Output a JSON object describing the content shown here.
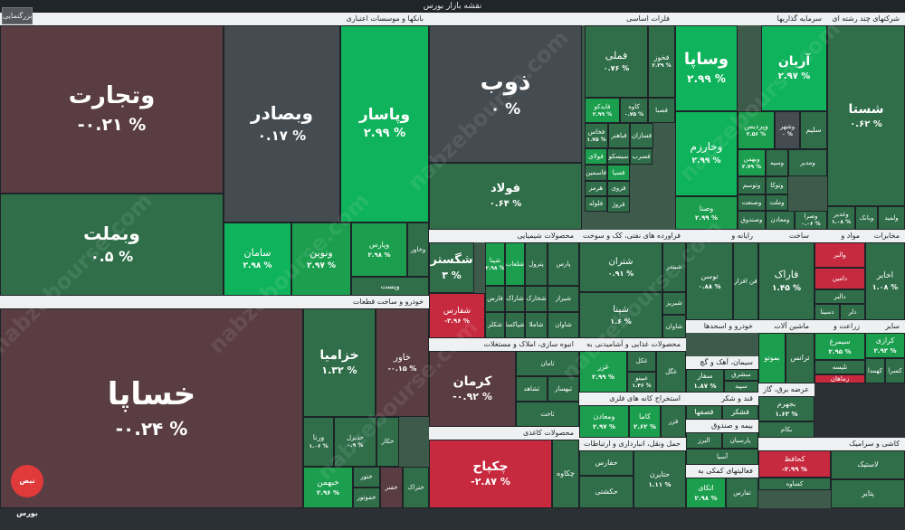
{
  "page": {
    "title": "نقشه بازار بورس",
    "zoom_button": "بزرگنمایی",
    "watermark": "nabzebourse.com",
    "logo_text": "نبض بورس"
  },
  "colors": {
    "strong_up": "#0fb35b",
    "mid_up": "#1b9e4d",
    "weak_up": "#2f6e49",
    "flat": "#444b51",
    "weak_down": "#5a3d43",
    "strong_down": "#c72a3f",
    "header_bg": "#eef0f2"
  },
  "chart_data": {
    "type": "treemap",
    "sectors": [
      {
        "name": "بانکها و موسسات اعتباری",
        "tiles": [
          {
            "symbol": "وتجارت",
            "change": "-۰.۲۱ %",
            "tone": "weak_down"
          },
          {
            "symbol": "وبملت",
            "change": "۰.۵ %",
            "tone": "weak_up"
          },
          {
            "symbol": "وبصادر",
            "change": "۰.۱۷ %",
            "tone": "flat"
          },
          {
            "symbol": "وپاسار",
            "change": "۲.۹۹ %",
            "tone": "strong_up"
          },
          {
            "symbol": "سامان",
            "change": "۲.۹۸ %",
            "tone": "strong_up"
          },
          {
            "symbol": "ونوین",
            "change": "۲.۹۷ %",
            "tone": "mid_up"
          },
          {
            "symbol": "وپارس",
            "change": "۲.۹۸ %",
            "tone": "mid_up"
          },
          {
            "symbol": "وخاور",
            "change": "",
            "tone": "weak_up"
          },
          {
            "symbol": "ویست",
            "change": "",
            "tone": "weak_up"
          }
        ]
      },
      {
        "name": "خودرو و ساخت قطعات",
        "tiles": [
          {
            "symbol": "خساپا",
            "change": "-۰.۲۴ %",
            "tone": "weak_down"
          },
          {
            "symbol": "خزامیا",
            "change": "۱.۳۲ %",
            "tone": "weak_up"
          },
          {
            "symbol": "خاور",
            "change": "-۰.۱۵ %",
            "tone": "weak_down"
          },
          {
            "symbol": "ورنا",
            "change": "۱.۰۶ %",
            "tone": "weak_up"
          },
          {
            "symbol": "خدیزل",
            "change": "۰.۹ %",
            "tone": "weak_up"
          },
          {
            "symbol": "خکار",
            "change": "",
            "tone": "weak_up"
          },
          {
            "symbol": "خبهمن",
            "change": "۲.۹۶ %",
            "tone": "mid_up"
          },
          {
            "symbol": "ختور",
            "change": "",
            "tone": "weak_up"
          },
          {
            "symbol": "خموتور",
            "change": "",
            "tone": "weak_up"
          },
          {
            "symbol": "خفنر",
            "change": "",
            "tone": "weak_down"
          },
          {
            "symbol": "ختراک",
            "change": "",
            "tone": "weak_up"
          }
        ]
      },
      {
        "name": "فلزات اساسی",
        "tiles": [
          {
            "symbol": "ذوب",
            "change": "۰ %",
            "tone": "flat"
          },
          {
            "symbol": "فولاد",
            "change": "۰.۶۴ %",
            "tone": "weak_up"
          },
          {
            "symbol": "فملی",
            "change": "۰.۷۶ %",
            "tone": "weak_up"
          },
          {
            "symbol": "فخوز",
            "change": "۲.۳۹ %",
            "tone": "weak_up"
          },
          {
            "symbol": "کاوه",
            "change": "۰.۷۵ %",
            "tone": "weak_up"
          },
          {
            "symbol": "فایدکو",
            "change": "۲.۹۹ %",
            "tone": "mid_up"
          },
          {
            "symbol": "فصبا",
            "change": "",
            "tone": "weak_up"
          },
          {
            "symbol": "فخاس",
            "change": "۱.۷۵ %",
            "tone": "weak_up"
          },
          {
            "symbol": "فباهنر",
            "change": "",
            "tone": "weak_up"
          },
          {
            "symbol": "فسازان",
            "change": "",
            "tone": "weak_up"
          },
          {
            "symbol": "فولای",
            "change": "",
            "tone": "mid_up"
          },
          {
            "symbol": "سیسکو",
            "change": "",
            "tone": "weak_up"
          },
          {
            "symbol": "فاسمین",
            "change": "",
            "tone": "weak_up"
          },
          {
            "symbol": "فسپا",
            "change": "",
            "tone": "mid_up"
          },
          {
            "symbol": "هرمز",
            "change": "",
            "tone": "weak_up"
          },
          {
            "symbol": "فروی",
            "change": "",
            "tone": "weak_up"
          },
          {
            "symbol": "فسرب",
            "change": "",
            "tone": "weak_up"
          },
          {
            "symbol": "فلوله",
            "change": "",
            "tone": "weak_up"
          },
          {
            "symbol": "فروژ",
            "change": "",
            "tone": "weak_up"
          }
        ]
      },
      {
        "name": "سرمایه گذاریها",
        "tiles": [
          {
            "symbol": "وساپا",
            "change": "۲.۹۹ %",
            "tone": "strong_up"
          },
          {
            "symbol": "آریان",
            "change": "۲.۹۷ %",
            "tone": "strong_up"
          },
          {
            "symbol": "وخارزم",
            "change": "۲.۹۹ %",
            "tone": "strong_up"
          },
          {
            "symbol": "وپردیس",
            "change": "۲.۵۶ %",
            "tone": "mid_up"
          },
          {
            "symbol": "وشهر",
            "change": "۰ %",
            "tone": "flat"
          },
          {
            "symbol": "وصنا",
            "change": "۲.۹۹ %",
            "tone": "mid_up"
          },
          {
            "symbol": "وبهمن",
            "change": "۲.۷۹ %",
            "tone": "mid_up"
          },
          {
            "symbol": "وتوسم",
            "change": "",
            "tone": "weak_up"
          },
          {
            "symbol": "وسپه",
            "change": "",
            "tone": "weak_up"
          },
          {
            "symbol": "ومدیر",
            "change": "",
            "tone": "weak_up"
          },
          {
            "symbol": "وصنعت",
            "change": "",
            "tone": "weak_up"
          },
          {
            "symbol": "وتوکا",
            "change": "",
            "tone": "weak_up"
          },
          {
            "symbol": "وملت",
            "change": "",
            "tone": "weak_up"
          },
          {
            "symbol": "وصندوق",
            "change": "",
            "tone": "weak_up"
          },
          {
            "symbol": "ومعادن",
            "change": "",
            "tone": "weak_up"
          },
          {
            "symbol": "سلیم",
            "change": "",
            "tone": "weak_up"
          },
          {
            "symbol": "وصرا",
            "change": "۰.۰۶ %",
            "tone": "weak_up"
          }
        ]
      },
      {
        "name": "شرکتهای چند رشته ای",
        "tiles": [
          {
            "symbol": "شستا",
            "change": "۰.۶۲ %",
            "tone": "weak_up"
          },
          {
            "symbol": "وغدیر",
            "change": "۱.۰۸ %",
            "tone": "weak_up"
          },
          {
            "symbol": "وبانک",
            "change": "",
            "tone": "weak_up"
          },
          {
            "symbol": "ولمید",
            "change": "",
            "tone": "weak_up"
          }
        ]
      },
      {
        "name": "محصولات شیمیایی",
        "tiles": [
          {
            "symbol": "شگستر",
            "change": "۳ %",
            "tone": "weak_up"
          },
          {
            "symbol": "شپنا",
            "change": "۲.۹۸ %",
            "tone": "mid_up"
          },
          {
            "symbol": "شلعاب",
            "change": "",
            "tone": "mid_up"
          },
          {
            "symbol": "پترول",
            "change": "",
            "tone": "weak_up"
          },
          {
            "symbol": "پارس",
            "change": "",
            "tone": "weak_up"
          },
          {
            "symbol": "شفارس",
            "change": "-۳.۹۶ %",
            "tone": "strong_down"
          },
          {
            "symbol": "فارس",
            "change": "",
            "tone": "weak_up"
          },
          {
            "symbol": "شاراک",
            "change": "",
            "tone": "weak_up"
          },
          {
            "symbol": "شکلر",
            "change": "",
            "tone": "weak_up"
          },
          {
            "symbol": "شپاکسا",
            "change": "",
            "tone": "weak_up"
          },
          {
            "symbol": "شخارک",
            "change": "",
            "tone": "weak_up"
          },
          {
            "symbol": "شیراز",
            "change": "",
            "tone": "weak_up"
          },
          {
            "symbol": "شاملا",
            "change": "",
            "tone": "weak_up"
          },
          {
            "symbol": "شاوان",
            "change": "",
            "tone": "weak_up"
          }
        ]
      },
      {
        "name": "فراورده های نفتی، کک و سوخت",
        "tiles": [
          {
            "symbol": "شتران",
            "change": "۰.۹۱ %",
            "tone": "weak_up"
          },
          {
            "symbol": "شبندر",
            "change": "",
            "tone": "weak_up"
          },
          {
            "symbol": "شپنا",
            "change": "۱.۶ %",
            "tone": "weak_up"
          },
          {
            "symbol": "شبریز",
            "change": "",
            "tone": "weak_up"
          },
          {
            "symbol": "شاوان",
            "change": "",
            "tone": "weak_up"
          }
        ]
      },
      {
        "name": "رایانه و",
        "tiles": [
          {
            "symbol": "توسن",
            "change": "۰.۸۸ %",
            "tone": "weak_up"
          },
          {
            "symbol": "فن افزار",
            "change": "",
            "tone": "weak_up"
          }
        ]
      },
      {
        "name": "ساخت",
        "tiles": [
          {
            "symbol": "فاراک",
            "change": "۱.۴۵ %",
            "tone": "weak_up"
          }
        ]
      },
      {
        "name": "مواد و",
        "tiles": [
          {
            "symbol": "والبر",
            "change": "",
            "tone": "strong_down"
          },
          {
            "symbol": "دامین",
            "change": "",
            "tone": "strong_down"
          },
          {
            "symbol": "دالبر",
            "change": "",
            "tone": "weak_up"
          },
          {
            "symbol": "دسینا",
            "change": "",
            "tone": "weak_up"
          },
          {
            "symbol": "دلر",
            "change": "",
            "tone": "weak_up"
          }
        ]
      },
      {
        "name": "مخابرات",
        "tiles": [
          {
            "symbol": "اخابر",
            "change": "۱.۰۸ %",
            "tone": "weak_up"
          }
        ]
      },
      {
        "name": "خودرو و اسحدها",
        "tiles": []
      },
      {
        "name": "انبوه سازی، املاک و مستغلات",
        "tiles": [
          {
            "symbol": "کرمان",
            "change": "-۰.۹۲ %",
            "tone": "weak_down"
          },
          {
            "symbol": "ثامان",
            "change": "",
            "tone": "weak_up"
          },
          {
            "symbol": "ثشاهد",
            "change": "",
            "tone": "weak_up"
          },
          {
            "symbol": "ثبهساز",
            "change": "",
            "tone": "weak_up"
          },
          {
            "symbol": "ثاخت",
            "change": "",
            "tone": "weak_up"
          }
        ]
      },
      {
        "name": "محصولات غذایی و آشامیدنی به",
        "tiles": [
          {
            "symbol": "غزر",
            "change": "۲.۹۹ %",
            "tone": "mid_up"
          },
          {
            "symbol": "غکل",
            "change": "",
            "tone": "weak_up"
          },
          {
            "symbol": "غبینو",
            "change": "۱.۴۶ %",
            "tone": "weak_up"
          },
          {
            "symbol": "غگل",
            "change": "",
            "tone": "weak_up"
          }
        ]
      },
      {
        "name": "سیمان، آهک و گچ",
        "tiles": [
          {
            "symbol": "سفار",
            "change": "۱.۸۷ %",
            "tone": "weak_up"
          },
          {
            "symbol": "سشرق",
            "change": "",
            "tone": "weak_up"
          },
          {
            "symbol": "سپید",
            "change": "",
            "tone": "weak_up"
          },
          {
            "symbol": "سروم",
            "change": "",
            "tone": "weak_up"
          }
        ]
      },
      {
        "name": "ماشین آلات",
        "tiles": [
          {
            "symbol": "بموتو",
            "change": "",
            "tone": "mid_up"
          },
          {
            "symbol": "ترانس",
            "change": "",
            "tone": "weak_up"
          },
          {
            "symbol": "فعرا",
            "change": "",
            "tone": "weak_up"
          }
        ]
      },
      {
        "name": "زراعت و",
        "tiles": [
          {
            "symbol": "سیمرغ",
            "change": "۲.۹۵ %",
            "tone": "mid_up"
          },
          {
            "symbol": "تلیسه",
            "change": "",
            "tone": "weak_up"
          },
          {
            "symbol": "زماهان",
            "change": "",
            "tone": "strong_down"
          },
          {
            "symbol": "زکشت",
            "change": "",
            "tone": "weak_up"
          }
        ]
      },
      {
        "name": "سایر",
        "tiles": [
          {
            "symbol": "کرازی",
            "change": "۲.۹۳ %",
            "tone": "mid_up"
          },
          {
            "symbol": "کهمدا",
            "change": "",
            "tone": "weak_up"
          },
          {
            "symbol": "کسرا",
            "change": "",
            "tone": "weak_up"
          },
          {
            "symbol": "کساپا",
            "change": "",
            "tone": "weak_up"
          }
        ]
      },
      {
        "name": "استخراج کانه های فلزی",
        "tiles": [
          {
            "symbol": "ومعادن",
            "change": "۲.۹۷ %",
            "tone": "mid_up"
          },
          {
            "symbol": "کاما",
            "change": "۲.۶۲ %",
            "tone": "mid_up"
          },
          {
            "symbol": "فزر",
            "change": "",
            "tone": "weak_up"
          },
          {
            "symbol": "کگل",
            "change": "",
            "tone": "weak_up"
          }
        ]
      },
      {
        "name": "قند و شکر",
        "tiles": [
          {
            "symbol": "قصفها",
            "change": "",
            "tone": "weak_up"
          },
          {
            "symbol": "قشکر",
            "change": "",
            "tone": "weak_up"
          },
          {
            "symbol": "قنیشا",
            "change": "",
            "tone": "weak_up"
          }
        ]
      },
      {
        "name": "عرضه برق، گاز",
        "tiles": [
          {
            "symbol": "بجهرم",
            "change": "۱.۶۳ %",
            "tone": "weak_up"
          },
          {
            "symbol": "بکام",
            "change": "",
            "tone": "weak_up"
          },
          {
            "symbol": "سمگا",
            "change": "۱.۳۱ %",
            "tone": "weak_up"
          },
          {
            "symbol": "هتل",
            "change": "",
            "tone": "weak_up"
          }
        ]
      },
      {
        "name": "محصولات کاغذی",
        "tiles": [
          {
            "symbol": "چکپاح",
            "change": "-۲.۸۷ %",
            "tone": "strong_down"
          },
          {
            "symbol": "چکاوه",
            "change": "",
            "tone": "weak_up"
          }
        ]
      },
      {
        "name": "حمل ونقل، انبارداری و ارتباطات",
        "tiles": [
          {
            "symbol": "حفارس",
            "change": "",
            "tone": "weak_up"
          },
          {
            "symbol": "حتاپرن",
            "change": "۱.۱۱ %",
            "tone": "weak_up"
          },
          {
            "symbol": "حکشتی",
            "change": "",
            "tone": "weak_up"
          }
        ]
      },
      {
        "name": "بیمه و صندوق",
        "tiles": [
          {
            "symbol": "البرز",
            "change": "",
            "tone": "weak_up"
          },
          {
            "symbol": "پارسیان",
            "change": "",
            "tone": "weak_up"
          },
          {
            "symbol": "آسیا",
            "change": "",
            "tone": "weak_up"
          }
        ]
      },
      {
        "name": "فعالیتهای کمکی به",
        "tiles": [
          {
            "symbol": "اتکای",
            "change": "۲.۹۸ %",
            "tone": "mid_up"
          },
          {
            "symbol": "تفارس",
            "change": "",
            "tone": "weak_up"
          }
        ]
      },
      {
        "name": "کاشی و سرامیک",
        "tiles": [
          {
            "symbol": "کحافظ",
            "change": "-۲.۹۹ %",
            "tone": "strong_down"
          },
          {
            "symbol": "کساوه",
            "change": "",
            "tone": "weak_up"
          },
          {
            "symbol": "لاستیک",
            "change": "",
            "tone": "weak_up"
          },
          {
            "symbol": "پتایر",
            "change": "",
            "tone": "weak_up"
          }
        ]
      }
    ]
  }
}
